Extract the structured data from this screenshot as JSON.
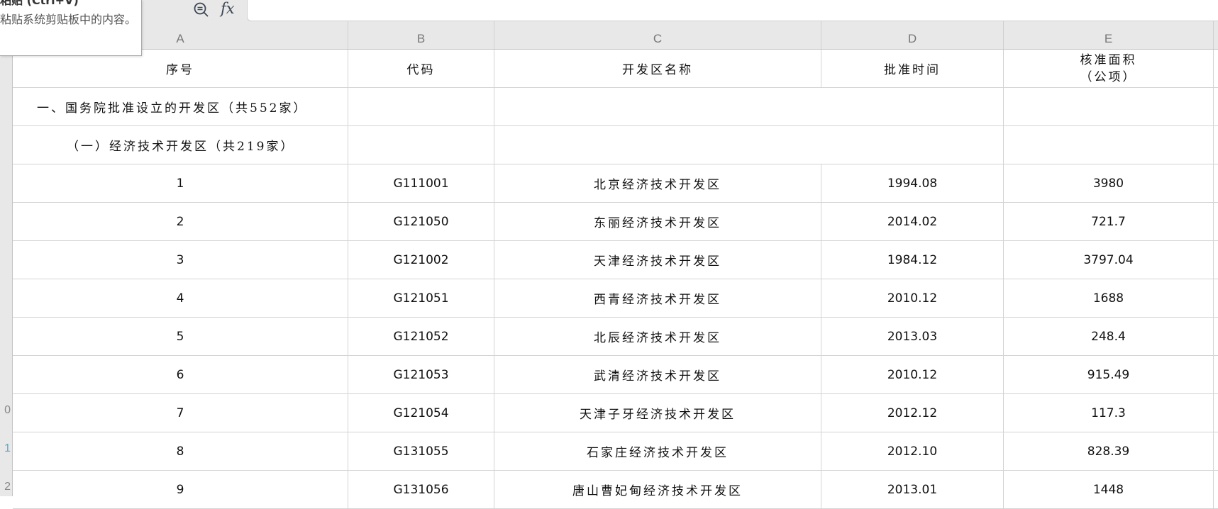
{
  "tooltip": {
    "title": "粘贴 (Ctrl+V)",
    "description": "粘贴系统剪贴板中的内容。"
  },
  "formula_bar": {
    "zoom_icon": "zoom-out-icon",
    "fx_label": "fx",
    "value": ""
  },
  "columns": [
    "A",
    "B",
    "C",
    "D",
    "E"
  ],
  "row_numbers": [
    "",
    "",
    "",
    "",
    "",
    "",
    "",
    "",
    "",
    "0",
    "1",
    "2"
  ],
  "header": {
    "a": "序号",
    "b": "代码",
    "c": "开发区名称",
    "d": "批准时间",
    "e1": "核准面积",
    "e2": "（公项）"
  },
  "section1": "一、国务院批准设立的开发区（共552家）",
  "section2": "（一）经济技术开发区（共219家）",
  "rows": [
    {
      "no": "1",
      "code": "G111001",
      "name": "北京经济技术开发区",
      "date": "1994.08",
      "area": "3980"
    },
    {
      "no": "2",
      "code": "G121050",
      "name": "东丽经济技术开发区",
      "date": "2014.02",
      "area": "721.7"
    },
    {
      "no": "3",
      "code": "G121002",
      "name": "天津经济技术开发区",
      "date": "1984.12",
      "area": "3797.04"
    },
    {
      "no": "4",
      "code": "G121051",
      "name": "西青经济技术开发区",
      "date": "2010.12",
      "area": "1688"
    },
    {
      "no": "5",
      "code": "G121052",
      "name": "北辰经济技术开发区",
      "date": "2013.03",
      "area": "248.4"
    },
    {
      "no": "6",
      "code": "G121053",
      "name": "武清经济技术开发区",
      "date": "2010.12",
      "area": "915.49"
    },
    {
      "no": "7",
      "code": "G121054",
      "name": "天津子牙经济技术开发区",
      "date": "2012.12",
      "area": "117.3"
    },
    {
      "no": "8",
      "code": "G131055",
      "name": "石家庄经济技术开发区",
      "date": "2012.10",
      "area": "828.39"
    },
    {
      "no": "9",
      "code": "G131056",
      "name": "唐山曹妃甸经济技术开发区",
      "date": "2013.01",
      "area": "1448"
    }
  ]
}
